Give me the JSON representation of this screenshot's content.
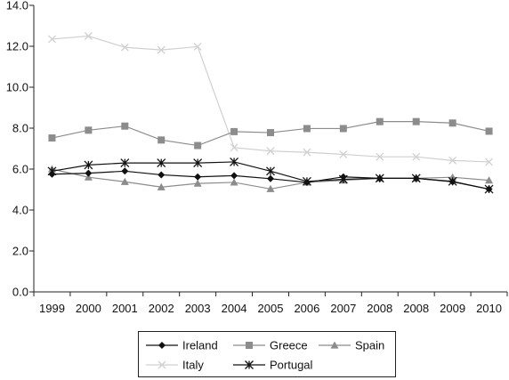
{
  "chart_data": {
    "type": "line",
    "categories": [
      "1999",
      "2000",
      "2001",
      "2002",
      "2003",
      "2004",
      "2005",
      "2006",
      "2007",
      "2008",
      "2008",
      "2009",
      "2010"
    ],
    "ylim": [
      0,
      14
    ],
    "yticks": [
      "0.0",
      "2.0",
      "4.0",
      "6.0",
      "8.0",
      "10.0",
      "12.0",
      "14.0"
    ],
    "grid": false,
    "legend_position": "bottom",
    "series": [
      {
        "name": "Ireland",
        "marker": "diamond",
        "color": "#111111",
        "values": [
          5.75,
          5.8,
          5.9,
          5.72,
          5.62,
          5.68,
          5.53,
          5.35,
          5.62,
          5.55,
          5.55,
          5.38,
          5.02
        ]
      },
      {
        "name": "Greece",
        "marker": "square",
        "color": "#8c8c8c",
        "values": [
          7.52,
          7.9,
          8.1,
          7.42,
          7.15,
          7.83,
          7.78,
          7.98,
          7.98,
          8.32,
          8.32,
          8.25,
          7.85
        ]
      },
      {
        "name": "Spain",
        "marker": "triangle",
        "color": "#8c8c8c",
        "values": [
          6.0,
          5.6,
          5.38,
          5.12,
          5.3,
          5.35,
          5.03,
          5.35,
          5.45,
          5.55,
          5.55,
          5.6,
          5.45
        ]
      },
      {
        "name": "Italy",
        "marker": "x",
        "color": "#d0d0d0",
        "values": [
          12.35,
          12.5,
          11.95,
          11.82,
          11.98,
          7.05,
          6.88,
          6.82,
          6.72,
          6.6,
          6.6,
          6.42,
          6.35
        ]
      },
      {
        "name": "Portugal",
        "marker": "star",
        "color": "#111111",
        "values": [
          5.9,
          6.2,
          6.3,
          6.3,
          6.3,
          6.35,
          5.9,
          5.4,
          5.5,
          5.55,
          5.55,
          5.4,
          5.02
        ]
      }
    ]
  }
}
